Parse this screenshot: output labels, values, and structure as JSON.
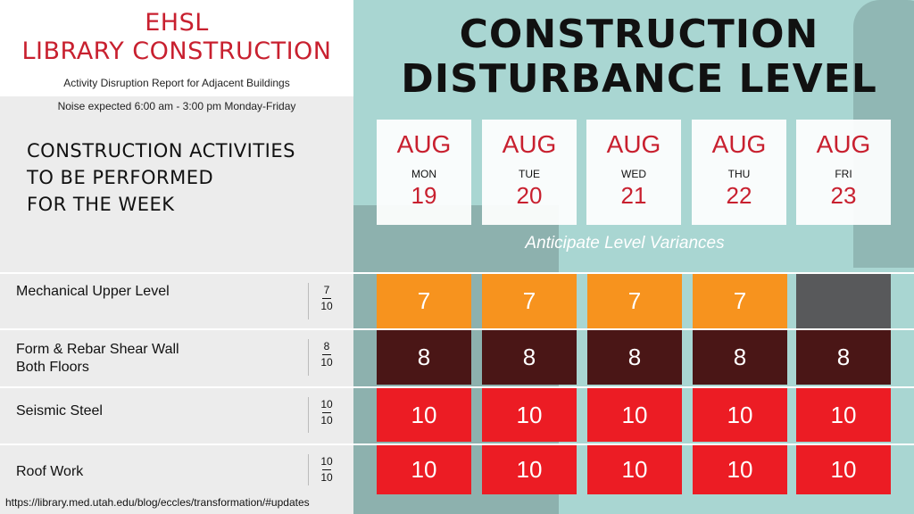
{
  "colors": {
    "accent_red": "#c8202f",
    "level7": "#f7931e",
    "level8": "#4a1616",
    "level10": "#ec1c24",
    "none": "#58595b"
  },
  "header": {
    "org": "EHSL",
    "project": "LIBRARY CONSTRUCTION",
    "subtitle": "Activity Disruption Report for Adjacent Buildings",
    "hours": "Noise expected 6:00 am - 3:00 pm Monday-Friday"
  },
  "activities_heading": {
    "line1": "CONSTRUCTION ACTIVITIES",
    "line2": "TO BE PERFORMED",
    "line3": "FOR THE WEEK"
  },
  "main_title": {
    "line1": "CONSTRUCTION",
    "line2": "DISTURBANCE LEVEL"
  },
  "days": [
    {
      "month": "AUG",
      "weekday": "MON",
      "date": "19"
    },
    {
      "month": "AUG",
      "weekday": "TUE",
      "date": "20"
    },
    {
      "month": "AUG",
      "weekday": "WED",
      "date": "21"
    },
    {
      "month": "AUG",
      "weekday": "THU",
      "date": "22"
    },
    {
      "month": "AUG",
      "weekday": "FRI",
      "date": "23"
    }
  ],
  "variance_note": "Anticipate Level Variances",
  "rows": [
    {
      "line1": "Mechanical Upper Level",
      "line2": "",
      "level_num": "7",
      "level_den": "10",
      "cells": [
        "7",
        "7",
        "7",
        "7",
        ""
      ]
    },
    {
      "line1": "Form & Rebar Shear Wall",
      "line2": "Both Floors",
      "level_num": "8",
      "level_den": "10",
      "cells": [
        "8",
        "8",
        "8",
        "8",
        "8"
      ]
    },
    {
      "line1": "Seismic Steel",
      "line2": "",
      "level_num": "10",
      "level_den": "10",
      "cells": [
        "10",
        "10",
        "10",
        "10",
        "10"
      ]
    },
    {
      "line1": "Roof Work",
      "line2": "",
      "level_num": "10",
      "level_den": "10",
      "cells": [
        "10",
        "10",
        "10",
        "10",
        "10"
      ]
    }
  ],
  "footer_url": "https://library.med.utah.edu/blog/eccles/transformation/#updates"
}
